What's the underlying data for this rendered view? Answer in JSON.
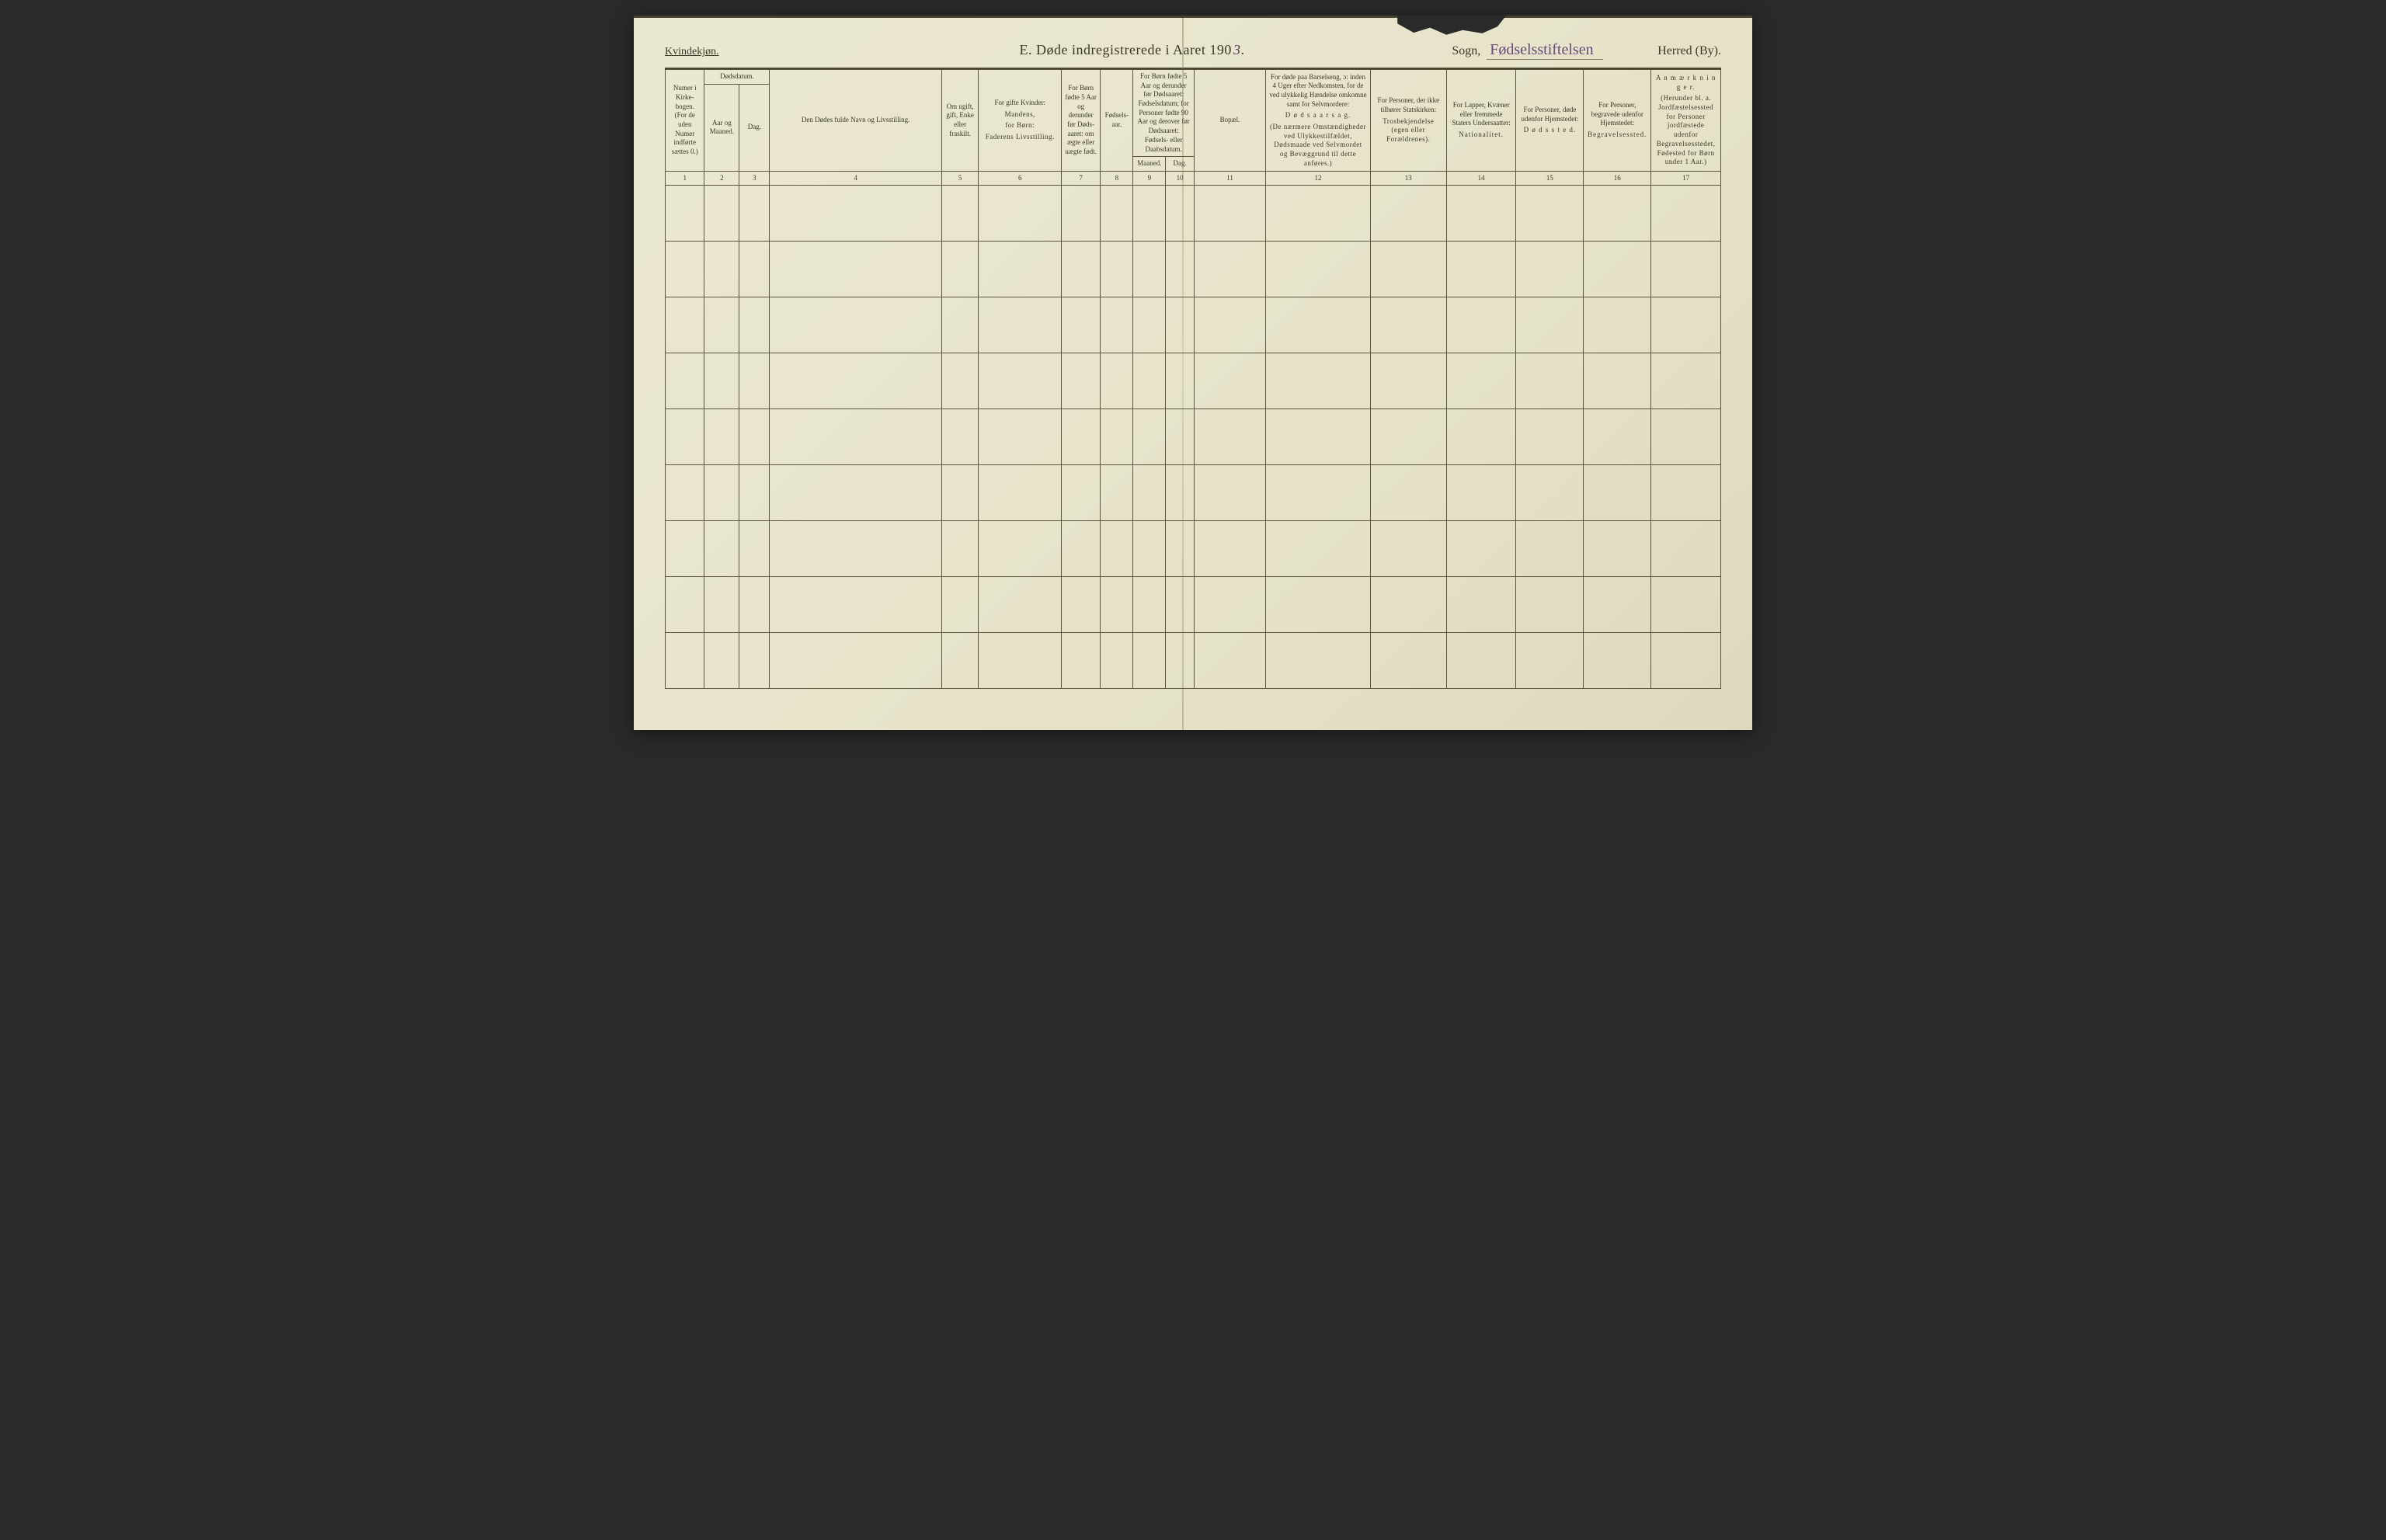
{
  "paper": {
    "background_gradient": [
      "#ebe8d0",
      "#e8e5cc",
      "#e4e1c6",
      "#ded9be"
    ],
    "ink_color": "#3a3628",
    "rule_color": "#5a543c",
    "handwriting_color": "#6a4a7a"
  },
  "header": {
    "gender": "Kvindekjøn.",
    "title_prefix": "E.   Døde indregistrerede i Aaret 190",
    "title_year_suffix": "3",
    "title_period": ".",
    "sogn_label": "Sogn,",
    "sogn_value": "Fødselsstiftelsen",
    "herred_label": "Herred (By)."
  },
  "columns": {
    "col1": {
      "num": "1",
      "text": "Numer i Kirke­bogen. (For de uden Numer indførte sættes 0.)"
    },
    "col2_group": "Dødsdatum.",
    "col2": {
      "num": "2",
      "text": "Aar og Maaned."
    },
    "col3": {
      "num": "3",
      "text": "Dag."
    },
    "col4": {
      "num": "4",
      "text": "Den Dødes fulde Navn og Livsstilling."
    },
    "col5": {
      "num": "5",
      "text": "Om ugift, gift, Enke eller fraskilt."
    },
    "col6": {
      "num": "6",
      "line1": "For gifte Kvinder:",
      "sub1": "Mandens,",
      "line2": "for Børn:",
      "sub2": "Faderens Livsstilling."
    },
    "col7": {
      "num": "7",
      "text": "For Børn fødte 5 Aar og derunder før Døds­aaret: om ægte eller uægte født."
    },
    "col8": {
      "num": "8",
      "text": "Fødsels­aar."
    },
    "col9_10_group": "For Børn fødte 5 Aar og der­under før Dødsaaret: Fødselsdatum; for Personer fødte 90 Aar og derover før Dødsaaret: Fødsels- eller Daabsdatum.",
    "col9": {
      "num": "9",
      "text": "Maaned."
    },
    "col10": {
      "num": "10",
      "text": "Dag."
    },
    "col11": {
      "num": "11",
      "text": "Bopæl."
    },
    "col12": {
      "num": "12",
      "lead": "For døde paa Barselseng, ɔ: inden 4 Uger efter Nedkomsten, for de ved ulykkelig Hændelse omkomne samt for Selvmordere:",
      "main": "D ø d s a a r s a g.",
      "tail": "(De nærmere Omstæn­digheder ved Ulykkes­tilfældet, Dødsmaade ved Selvmordet og Bevæggrund til dette anføres.)"
    },
    "col13": {
      "num": "13",
      "line1": "For Personer, der ikke tilhører Statskirken:",
      "sub": "Trosbekjendelse (egen eller Forældrenes)."
    },
    "col14": {
      "num": "14",
      "line1": "For Lapper, Kvæner eller fremmede Staters Undersaatter:",
      "sub": "Nationalitet."
    },
    "col15": {
      "num": "15",
      "line1": "For Personer, døde udenfor Hjemstedet:",
      "sub": "D ø d s s t e d."
    },
    "col16": {
      "num": "16",
      "line1": "For Personer, begravede udenfor Hjemstedet:",
      "sub": "Begravelsessted."
    },
    "col17": {
      "num": "17",
      "line1": "A n m æ r k n i n g e r.",
      "sub": "(Herunder bl. a. Jordfæstelsessted for Personer jordfæstede udenfor Begravelses­stedet, Fødested for Børn under 1 Aar.)"
    }
  },
  "body_row_count": 9
}
